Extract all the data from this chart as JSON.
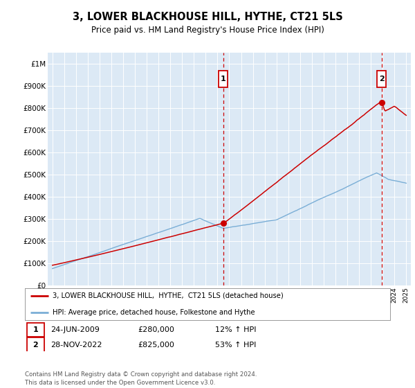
{
  "title": "3, LOWER BLACKHOUSE HILL, HYTHE, CT21 5LS",
  "subtitle": "Price paid vs. HM Land Registry's House Price Index (HPI)",
  "title_fontsize": 10.5,
  "subtitle_fontsize": 8.5,
  "bg_color": "#ffffff",
  "plot_bg_color": "#dce9f5",
  "grid_color": "#ffffff",
  "red_line_color": "#cc0000",
  "blue_line_color": "#7aaed6",
  "ylim_min": 0,
  "ylim_max": 1050000,
  "yticks": [
    0,
    100000,
    200000,
    300000,
    400000,
    500000,
    600000,
    700000,
    800000,
    900000,
    1000000
  ],
  "ytick_labels": [
    "£0",
    "£100K",
    "£200K",
    "£300K",
    "£400K",
    "£500K",
    "£600K",
    "£700K",
    "£800K",
    "£900K",
    "£1M"
  ],
  "sale1_year": 2009.48,
  "sale1_price": 280000,
  "sale1_label": "1",
  "sale1_date": "24-JUN-2009",
  "sale1_hpi": "12%",
  "sale2_year": 2022.91,
  "sale2_price": 825000,
  "sale2_label": "2",
  "sale2_date": "28-NOV-2022",
  "sale2_hpi": "53%",
  "legend_line1": "3, LOWER BLACKHOUSE HILL,  HYTHE,  CT21 5LS (detached house)",
  "legend_line2": "HPI: Average price, detached house, Folkestone and Hythe",
  "footer": "Contains HM Land Registry data © Crown copyright and database right 2024.\nThis data is licensed under the Open Government Licence v3.0."
}
